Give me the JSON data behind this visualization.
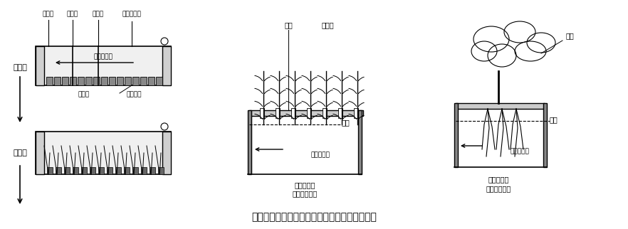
{
  "title": "図２　水耕方式による水稲育苗および野菜栽培",
  "title_fontsize": 12,
  "background_color": "#ffffff",
  "text_color": "#000000",
  "line_color": "#000000",
  "labels": {
    "haishubu": "排出部",
    "karyu_dam": "下流堰",
    "joryu_dam": "上流堰",
    "yoeki_noshutsubu": "養液噴出部",
    "yoeki_nagare": "養液の流れ",
    "ikubyoso": "育苗槽",
    "suito_tane": "水稲種子",
    "hashu_ji": "播種時",
    "kansei_ji": "完成時",
    "tane": "種子",
    "shiji_ita": "支持板",
    "suimen": "水面",
    "yoeki_nagare2": "養液の流れ",
    "ikubyoso_teimen": "育苗槽底面",
    "yasai_saibai": "葉菜類栽培時",
    "kajitsu_saibai": "果菜類栽培時",
    "tane2": "種子",
    "suimen2": "水面",
    "yoeki_nagare3": "養液の流れ",
    "ikubyoso_teimen2": "育苗槽底面"
  }
}
